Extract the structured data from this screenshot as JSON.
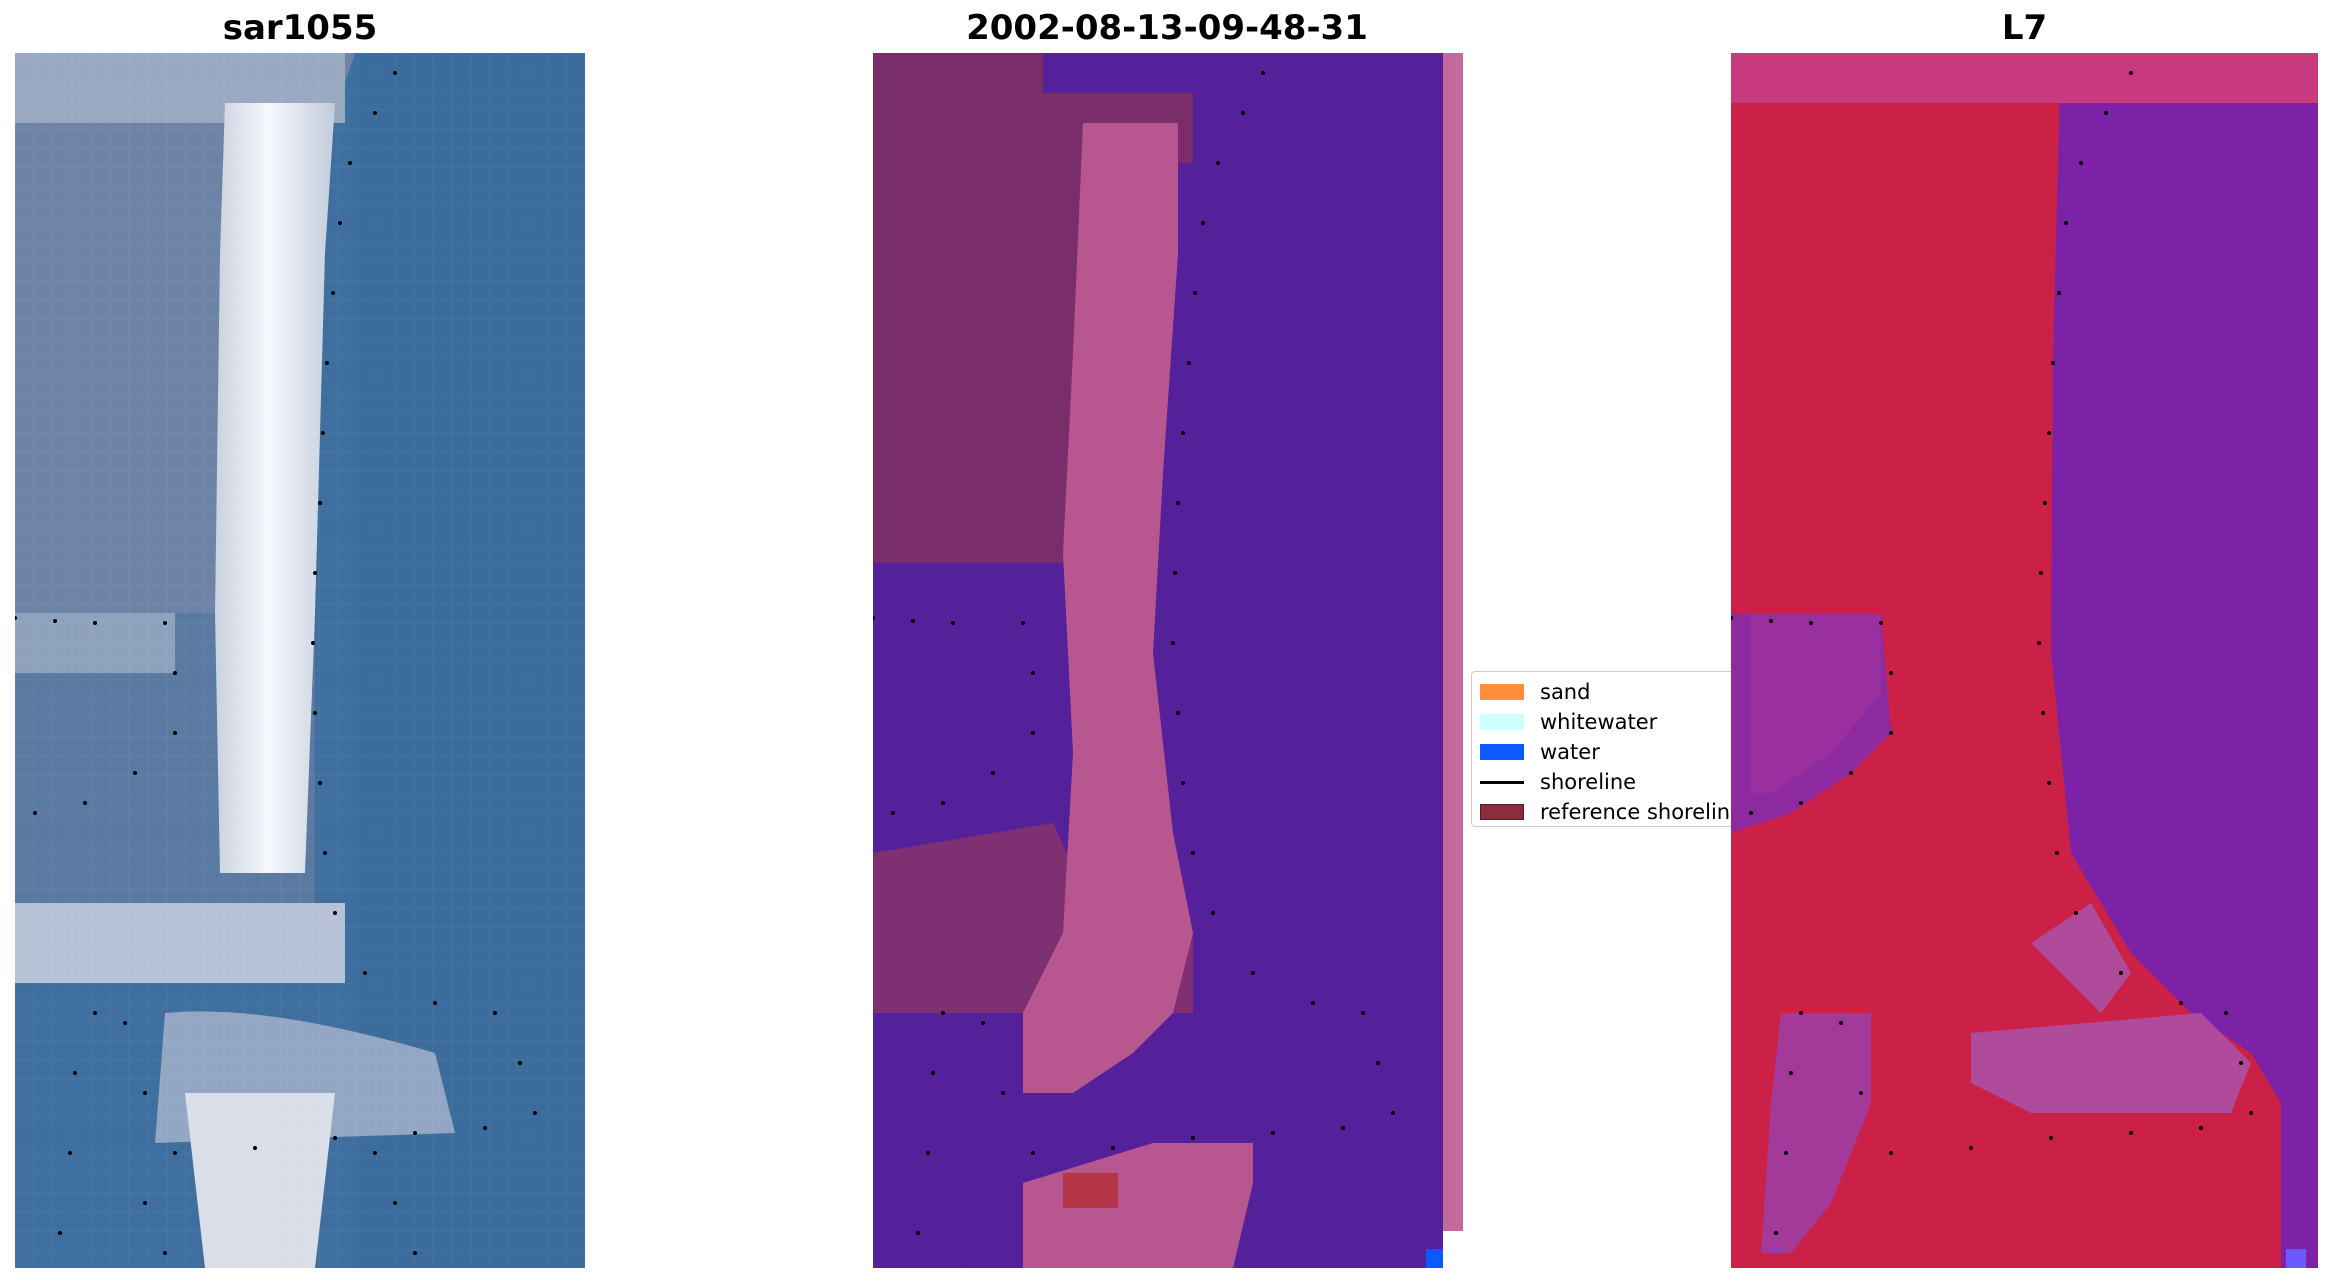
{
  "panels": [
    {
      "id": "rgb",
      "title": "sar1055"
    },
    {
      "id": "classified",
      "title": "2002-08-13-09-48-31"
    },
    {
      "id": "index",
      "title": "L7"
    }
  ],
  "legend": {
    "items": [
      {
        "label": "sand",
        "color": "#ff8c3c",
        "kind": "patch"
      },
      {
        "label": "whitewater",
        "color": "#ccffff",
        "kind": "patch"
      },
      {
        "label": "water",
        "color": "#0a5aff",
        "kind": "patch"
      },
      {
        "label": "shoreline",
        "color": "#000000",
        "kind": "line"
      },
      {
        "label": "reference shoreline",
        "color": "#8b2d3a",
        "kind": "patch"
      }
    ]
  },
  "colors": {
    "rgb_water": "#3f6f9e",
    "rgb_land": "#6f86a8",
    "rgb_beach": "#e8ecf4",
    "class_background": "#7a2d6b",
    "class_water": "#55219a",
    "class_sand_overlay": "#b8578f",
    "class_edge": "#c46a9a",
    "index_land": "#cc2146",
    "index_water": "#7b22a6",
    "index_transition": "#b04a9a",
    "shoreline_dots": "#000000"
  }
}
